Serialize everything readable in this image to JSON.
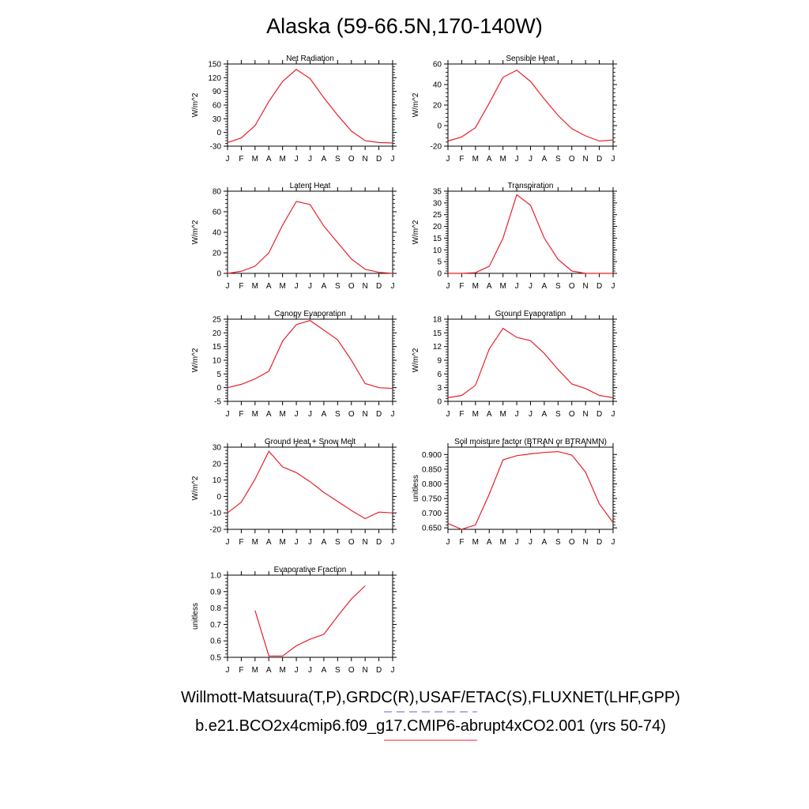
{
  "title": "Alaska (59-66.5N,170-140W)",
  "credits": {
    "observations": "Willmott-Matsuura(T,P),GRDC(R),USAF/ETAC(S),FLUXNET(LHF,GPP)",
    "model": "b.e21.BCO2x4cmip6.f09_g17.CMIP6-abrupt4xCO2.001 (yrs 50-74)"
  },
  "colors": {
    "model_line": "#e8202a",
    "obs_line": "#6060e0"
  },
  "chart_data": [
    {
      "type": "line",
      "title": "Net Radiation",
      "ylabel": "W/m^2",
      "categories": [
        "J",
        "F",
        "M",
        "A",
        "M",
        "J",
        "J",
        "A",
        "S",
        "O",
        "N",
        "D",
        "J"
      ],
      "ylim": [
        -30,
        150
      ],
      "yticks": [
        -30,
        0,
        30,
        60,
        90,
        120,
        150
      ],
      "ytick_labels": [
        "-30",
        "0",
        "30",
        "60",
        "90",
        "120",
        "150"
      ],
      "values": [
        -22,
        -12,
        15,
        68,
        112,
        138,
        118,
        76,
        38,
        3,
        -18,
        -22,
        -23
      ]
    },
    {
      "type": "line",
      "title": "Sensible Heat",
      "ylabel": "W/m^2",
      "categories": [
        "J",
        "F",
        "M",
        "A",
        "M",
        "J",
        "J",
        "A",
        "S",
        "O",
        "N",
        "D",
        "J"
      ],
      "ylim": [
        -20,
        60
      ],
      "yticks": [
        -20,
        0,
        20,
        40,
        60
      ],
      "ytick_labels": [
        "-20",
        "0",
        "20",
        "40",
        "60"
      ],
      "values": [
        -15,
        -11,
        -2,
        22,
        47,
        54,
        43,
        26,
        10,
        -3,
        -10,
        -15,
        -14
      ]
    },
    {
      "type": "line",
      "title": "Latent Heat",
      "ylabel": "W/m^2",
      "categories": [
        "J",
        "F",
        "M",
        "A",
        "M",
        "J",
        "J",
        "A",
        "S",
        "O",
        "N",
        "D",
        "J"
      ],
      "ylim": [
        0,
        80
      ],
      "yticks": [
        0,
        20,
        40,
        60,
        80
      ],
      "ytick_labels": [
        "0",
        "20",
        "40",
        "60",
        "80"
      ],
      "values": [
        0,
        2,
        7,
        20,
        47,
        70,
        67,
        46,
        30,
        14,
        4,
        1,
        0
      ]
    },
    {
      "type": "line",
      "title": "Transpiration",
      "ylabel": "W/m^2",
      "categories": [
        "J",
        "F",
        "M",
        "A",
        "M",
        "J",
        "J",
        "A",
        "S",
        "O",
        "N",
        "D",
        "J"
      ],
      "ylim": [
        0,
        35
      ],
      "yticks": [
        0,
        5,
        10,
        15,
        20,
        25,
        30,
        35
      ],
      "ytick_labels": [
        "0",
        "5",
        "10",
        "15",
        "20",
        "25",
        "30",
        "35"
      ],
      "values": [
        0,
        0,
        0.3,
        3,
        15,
        33.5,
        29,
        15,
        6,
        1,
        0,
        0,
        0
      ]
    },
    {
      "type": "line",
      "title": "Canopy Evaporation",
      "ylabel": "W/m^2",
      "categories": [
        "J",
        "F",
        "M",
        "A",
        "M",
        "J",
        "J",
        "A",
        "S",
        "O",
        "N",
        "D",
        "J"
      ],
      "ylim": [
        -5,
        25
      ],
      "yticks": [
        -5,
        0,
        5,
        10,
        15,
        20,
        25
      ],
      "ytick_labels": [
        "-5",
        "0",
        "5",
        "10",
        "15",
        "20",
        "25"
      ],
      "values": [
        0,
        1.2,
        3.2,
        6,
        17,
        23,
        24.5,
        21,
        17.5,
        10,
        1.5,
        0,
        -0.3
      ]
    },
    {
      "type": "line",
      "title": "Ground Evaporation",
      "ylabel": "W/m^2",
      "categories": [
        "J",
        "F",
        "M",
        "A",
        "M",
        "J",
        "J",
        "A",
        "S",
        "O",
        "N",
        "D",
        "J"
      ],
      "ylim": [
        0,
        18
      ],
      "yticks": [
        0,
        3,
        6,
        9,
        12,
        15,
        18
      ],
      "ytick_labels": [
        "0",
        "3",
        "6",
        "9",
        "12",
        "15",
        "18"
      ],
      "values": [
        0.8,
        1.3,
        3.5,
        11.5,
        16,
        14,
        13.3,
        10.5,
        7,
        3.8,
        2.8,
        1.3,
        0.8
      ]
    },
    {
      "type": "line",
      "title": "Ground Heat + Snow Melt",
      "ylabel": "W/m^2",
      "categories": [
        "J",
        "F",
        "M",
        "A",
        "M",
        "J",
        "J",
        "A",
        "S",
        "O",
        "N",
        "D",
        "J"
      ],
      "ylim": [
        -20,
        30
      ],
      "yticks": [
        -20,
        -10,
        0,
        10,
        20,
        30
      ],
      "ytick_labels": [
        "-20",
        "-10",
        "0",
        "10",
        "20",
        "30"
      ],
      "values": [
        -10,
        -3.5,
        10.5,
        27.5,
        18,
        14.5,
        9,
        2.5,
        -3,
        -8.5,
        -13.5,
        -9.5,
        -10
      ]
    },
    {
      "type": "line",
      "title": "Soil moisture factor (BTRAN or BTRANMN)",
      "ylabel": "unitless",
      "categories": [
        "J",
        "F",
        "M",
        "A",
        "M",
        "J",
        "J",
        "A",
        "S",
        "O",
        "N",
        "D",
        "J"
      ],
      "ylim": [
        0.645,
        0.925
      ],
      "yticks": [
        0.65,
        0.7,
        0.75,
        0.8,
        0.85,
        0.9
      ],
      "ytick_labels": [
        "0.650",
        "0.700",
        "0.750",
        "0.800",
        "0.850",
        "0.900"
      ],
      "values": [
        0.665,
        0.645,
        0.66,
        0.765,
        0.882,
        0.896,
        0.902,
        0.907,
        0.91,
        0.898,
        0.84,
        0.732,
        0.668
      ]
    },
    {
      "type": "line",
      "title": "Evaporative Fraction",
      "ylabel": "unitless",
      "categories": [
        "J",
        "F",
        "M",
        "A",
        "M",
        "J",
        "J",
        "A",
        "S",
        "O",
        "N",
        "D",
        "J"
      ],
      "ylim": [
        0.5,
        1.0
      ],
      "yticks": [
        0.5,
        0.6,
        0.7,
        0.8,
        0.9,
        1.0
      ],
      "ytick_labels": [
        "0.5",
        "0.6",
        "0.7",
        "0.8",
        "0.9",
        "1.0"
      ],
      "values": [
        null,
        null,
        0.785,
        0.508,
        0.508,
        0.57,
        0.61,
        0.64,
        0.75,
        0.855,
        0.935,
        null,
        null
      ]
    }
  ]
}
